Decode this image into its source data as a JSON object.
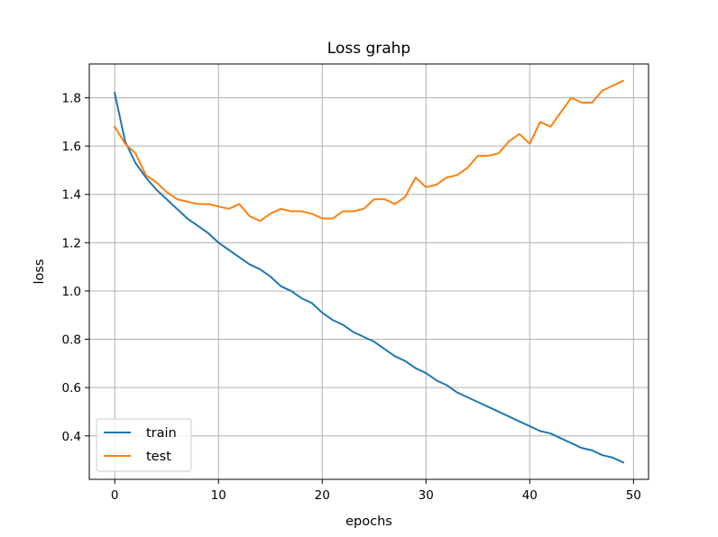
{
  "chart_data": {
    "type": "line",
    "title": "Loss grahp",
    "xlabel": "epochs",
    "ylabel": "loss",
    "xlim": [
      -2.45,
      51.45
    ],
    "ylim": [
      0.22,
      1.94
    ],
    "xticks": [
      0,
      10,
      20,
      30,
      40,
      50
    ],
    "yticks": [
      0.4,
      0.6,
      0.8,
      1.0,
      1.2,
      1.4,
      1.6,
      1.8
    ],
    "grid": true,
    "legend_position": "lower-left",
    "x": [
      0,
      1,
      2,
      3,
      4,
      5,
      6,
      7,
      8,
      9,
      10,
      11,
      12,
      13,
      14,
      15,
      16,
      17,
      18,
      19,
      20,
      21,
      22,
      23,
      24,
      25,
      26,
      27,
      28,
      29,
      30,
      31,
      32,
      33,
      34,
      35,
      36,
      37,
      38,
      39,
      40,
      41,
      42,
      43,
      44,
      45,
      46,
      47,
      48,
      49
    ],
    "series": [
      {
        "name": "train",
        "color": "#1f77b4",
        "values": [
          1.82,
          1.62,
          1.53,
          1.47,
          1.42,
          1.38,
          1.34,
          1.3,
          1.27,
          1.24,
          1.2,
          1.17,
          1.14,
          1.11,
          1.09,
          1.06,
          1.02,
          1.0,
          0.97,
          0.95,
          0.91,
          0.88,
          0.86,
          0.83,
          0.81,
          0.79,
          0.76,
          0.73,
          0.71,
          0.68,
          0.66,
          0.63,
          0.61,
          0.58,
          0.56,
          0.54,
          0.52,
          0.5,
          0.48,
          0.46,
          0.44,
          0.42,
          0.41,
          0.39,
          0.37,
          0.35,
          0.34,
          0.32,
          0.31,
          0.29
        ]
      },
      {
        "name": "test",
        "color": "#ff7f0e",
        "values": [
          1.68,
          1.61,
          1.57,
          1.48,
          1.45,
          1.41,
          1.38,
          1.37,
          1.36,
          1.36,
          1.35,
          1.34,
          1.36,
          1.31,
          1.29,
          1.32,
          1.34,
          1.33,
          1.33,
          1.32,
          1.3,
          1.3,
          1.33,
          1.33,
          1.34,
          1.38,
          1.38,
          1.36,
          1.39,
          1.47,
          1.43,
          1.44,
          1.47,
          1.48,
          1.51,
          1.56,
          1.56,
          1.57,
          1.62,
          1.65,
          1.61,
          1.7,
          1.68,
          1.74,
          1.8,
          1.78,
          1.78,
          1.83,
          1.85,
          1.87
        ]
      }
    ]
  }
}
